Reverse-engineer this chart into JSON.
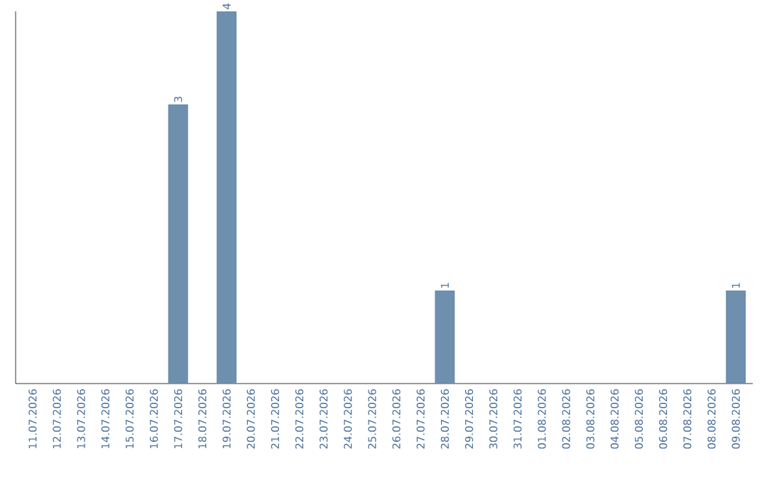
{
  "chart_data": {
    "type": "bar",
    "categories": [
      "11.07.2026",
      "12.07.2026",
      "13.07.2026",
      "14.07.2026",
      "15.07.2026",
      "16.07.2026",
      "17.07.2026",
      "18.07.2026",
      "19.07.2026",
      "20.07.2026",
      "21.07.2026",
      "22.07.2026",
      "23.07.2026",
      "24.07.2026",
      "25.07.2026",
      "26.07.2026",
      "27.07.2026",
      "28.07.2026",
      "29.07.2026",
      "30.07.2026",
      "31.07.2026",
      "01.08.2026",
      "02.08.2026",
      "03.08.2026",
      "04.08.2026",
      "05.08.2026",
      "06.08.2026",
      "07.08.2026",
      "08.08.2026",
      "09.08.2026"
    ],
    "values": [
      0,
      0,
      0,
      0,
      0,
      0,
      3,
      0,
      4,
      0,
      0,
      0,
      0,
      0,
      0,
      0,
      0,
      1,
      0,
      0,
      0,
      0,
      0,
      0,
      0,
      0,
      0,
      0,
      0,
      1
    ],
    "value_labels": [
      null,
      null,
      null,
      null,
      null,
      null,
      "3",
      null,
      "4",
      null,
      null,
      null,
      null,
      null,
      null,
      null,
      null,
      "1",
      null,
      null,
      null,
      null,
      null,
      null,
      null,
      null,
      null,
      null,
      null,
      "1"
    ],
    "color": "#6e8fad",
    "tick_labels": "x"
  }
}
